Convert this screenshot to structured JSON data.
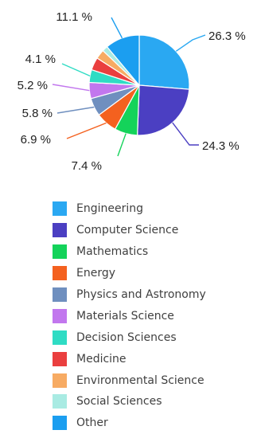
{
  "chart_data": {
    "type": "pie",
    "title": "",
    "legend_position": "bottom",
    "slices": [
      {
        "name": "Engineering",
        "value": 26.3,
        "label": "26.3 %",
        "color": "#2aa8f2"
      },
      {
        "name": "Computer Science",
        "value": 24.3,
        "label": "24.3 %",
        "color": "#4b3fc2"
      },
      {
        "name": "Mathematics",
        "value": 7.4,
        "label": "7.4 %",
        "color": "#14d35a"
      },
      {
        "name": "Energy",
        "value": 6.9,
        "label": "6.9 %",
        "color": "#f4611f"
      },
      {
        "name": "Physics and Astronomy",
        "value": 5.8,
        "label": "5.8 %",
        "color": "#6f8fbf"
      },
      {
        "name": "Materials Science",
        "value": 5.2,
        "label": "5.2 %",
        "color": "#c277ee"
      },
      {
        "name": "Decision Sciences",
        "value": 4.1,
        "label": "4.1 %",
        "color": "#2fdcc4"
      },
      {
        "name": "Medicine",
        "value": 4.1,
        "label": "",
        "color": "#ea3f3f"
      },
      {
        "name": "Environmental Science",
        "value": 3.0,
        "label": "",
        "color": "#f7ab63"
      },
      {
        "name": "Social Sciences",
        "value": 1.8,
        "label": "",
        "color": "#a9ebe3"
      },
      {
        "name": "Other",
        "value": 11.1,
        "label": "11.1 %",
        "color": "#1b9ef0"
      }
    ]
  }
}
